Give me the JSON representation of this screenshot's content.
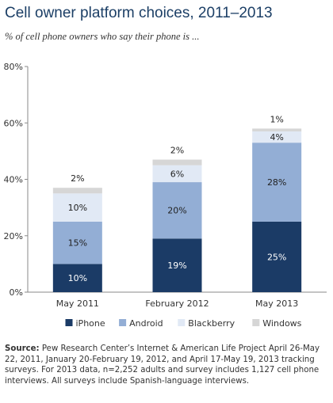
{
  "title": "Cell owner platform choices, 2011–2013",
  "subtitle": "% of cell phone owners who say their phone is ...",
  "source": {
    "label": "Source:",
    "text": "Pew Research Center’s Internet & American Life Project April 26-May 22, 2011, January 20-February 19, 2012, and April 17-May 19, 2013 tracking surveys. For 2013 data, n=2,252 adults and survey includes 1,127 cell phone interviews. All surveys include Spanish-language interviews."
  },
  "chart_data": {
    "type": "bar",
    "stacked": true,
    "categories": [
      "May 2011",
      "February 2012",
      "May 2013"
    ],
    "ylim": [
      0,
      80
    ],
    "yticks": [
      0,
      20,
      40,
      60,
      80
    ],
    "ytick_labels": [
      "0%",
      "20%",
      "40%",
      "60%",
      "80%"
    ],
    "grid": false,
    "legend": "bottom",
    "series": [
      {
        "name": "iPhone",
        "values": [
          10,
          19,
          25
        ],
        "labels": [
          "10%",
          "19%",
          "25%"
        ],
        "color": "#1b3b66",
        "label_color": "#ffffff"
      },
      {
        "name": "Android",
        "values": [
          15,
          20,
          28
        ],
        "labels": [
          "15%",
          "20%",
          "28%"
        ],
        "color": "#93aed5",
        "label_color": "#222222"
      },
      {
        "name": "Blackberry",
        "values": [
          10,
          6,
          4
        ],
        "labels": [
          "10%",
          "6%",
          "4%"
        ],
        "color": "#e1e9f5",
        "label_color": "#222222"
      },
      {
        "name": "Windows",
        "values": [
          2,
          2,
          1
        ],
        "labels": [
          "2%",
          "2%",
          "1%"
        ],
        "color": "#d6d6d6",
        "label_color": "#222222"
      }
    ]
  }
}
